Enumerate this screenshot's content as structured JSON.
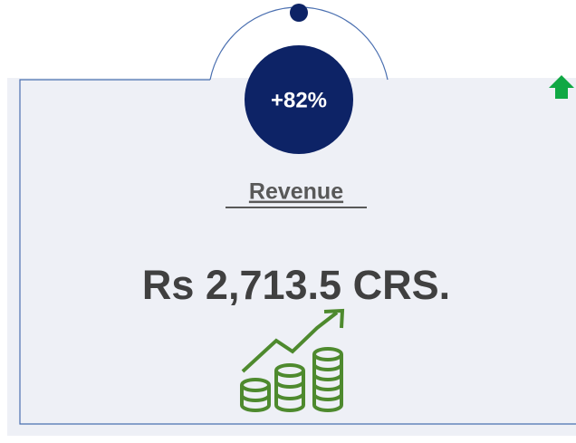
{
  "badge": "+82%",
  "title": "Revenue",
  "value": "Rs 2,713.5 CRS."
}
